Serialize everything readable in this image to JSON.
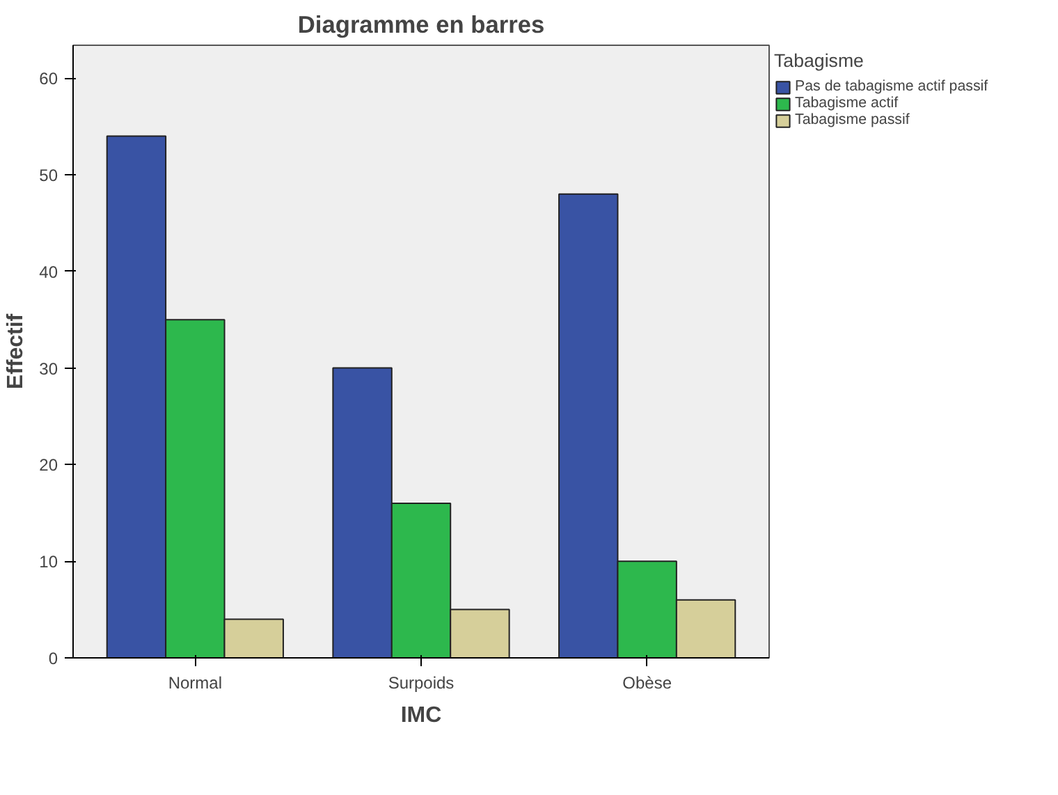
{
  "chart_data": {
    "type": "bar",
    "title": "Diagramme en barres",
    "xlabel": "IMC",
    "ylabel": "Effectif",
    "legend_title": "Tabagisme",
    "categories": [
      "Normal",
      "Surpoids",
      "Obèse"
    ],
    "series": [
      {
        "name": "Pas de tabagisme actif passif",
        "color": "#3953a4",
        "values": [
          54,
          30,
          48
        ]
      },
      {
        "name": "Tabagisme actif",
        "color": "#2db84d",
        "values": [
          35,
          16,
          10
        ]
      },
      {
        "name": "Tabagisme passif",
        "color": "#d6cf9a",
        "values": [
          4,
          5,
          6
        ]
      }
    ],
    "ylim": [
      0,
      63.4
    ],
    "yticks": [
      0,
      10,
      20,
      30,
      40,
      50,
      60
    ],
    "grid": false,
    "legend": "right"
  }
}
